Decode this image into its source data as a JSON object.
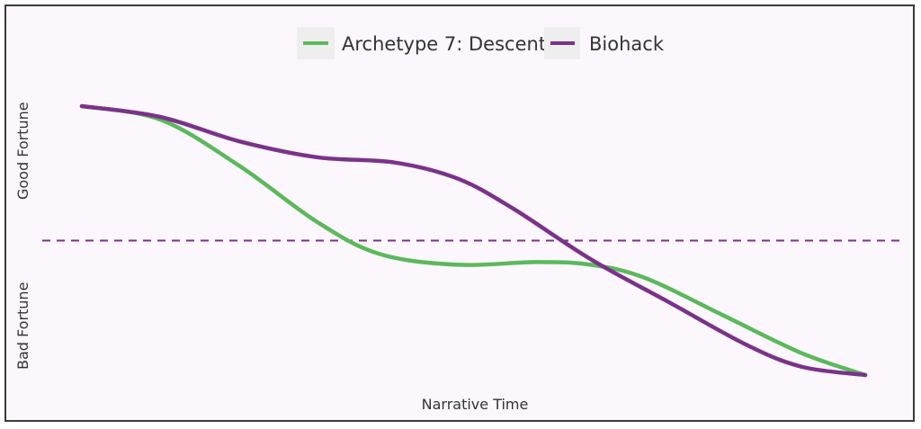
{
  "chart_data": {
    "type": "line",
    "x_range": [
      0,
      100
    ],
    "y_range": [
      0,
      100
    ],
    "xlabel": "Narrative Time",
    "y_labels": {
      "upper": "Good Fortune",
      "lower": "Bad Fortune"
    },
    "baseline": 50,
    "grid": false,
    "legend_position": "top-center",
    "series": [
      {
        "name": "Archetype 7: Descent",
        "color": "#5cb85c",
        "x": [
          0,
          10,
          20,
          30,
          38,
          48,
          58,
          65,
          72,
          82,
          92,
          100
        ],
        "y": [
          100,
          95,
          78,
          57,
          45,
          41,
          42,
          41,
          36,
          22,
          8,
          0
        ]
      },
      {
        "name": "Biohack",
        "color": "#7b3289",
        "x": [
          0,
          10,
          20,
          30,
          40,
          48,
          55,
          65,
          75,
          85,
          92,
          100
        ],
        "y": [
          100,
          96,
          87,
          81,
          79,
          73,
          62,
          43,
          27,
          11,
          3,
          0
        ]
      }
    ]
  }
}
